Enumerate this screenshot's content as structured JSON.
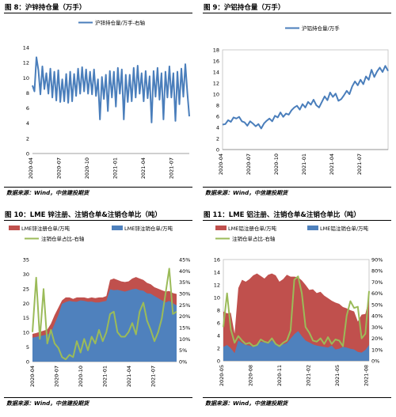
{
  "figures": [
    {
      "title": "图 8：沪锌持仓量（万手）",
      "source": "数据来源：Wind，中信建投期货"
    },
    {
      "title": "图 9：沪铝持仓量（万手）",
      "source": "数据来源：Wind，中信建投期货"
    },
    {
      "title": "图 10：LME 锌注册、注销仓单&注销仓单比（吨）",
      "source": "数据来源：Wind，中信建投期货"
    },
    {
      "title": "图 11：LME 铝注册、注销仓单&注销仓单比（吨）",
      "source": "数据来源：Wind，中信建投期货"
    }
  ],
  "colors": {
    "blue_line": "#4a7ebb",
    "red_area": "#c0504d",
    "blue_area": "#4f81bd",
    "green_line": "#9bbb59"
  },
  "chart_data": [
    {
      "type": "line",
      "series": [
        {
          "name": "沪锌持仓量/万手-右轴",
          "color": "#4a7ebb",
          "values": [
            9,
            8.2,
            12.7,
            11,
            7.8,
            11.5,
            8.5,
            10.6,
            7.9,
            11.2,
            7.4,
            10.8,
            7,
            11,
            6.8,
            9.8,
            6.9,
            10.5,
            6.7,
            10.8,
            6.9,
            10.5,
            7.6,
            11.2,
            7.9,
            11.4,
            8.2,
            11.1,
            7.9,
            10.8,
            7.8,
            11.1,
            7.6,
            9.8,
            4.5,
            10.1,
            7.2,
            10.4,
            5.6,
            10.9,
            7.4,
            10.8,
            6.2,
            11.3,
            7.9,
            11.1,
            4.5,
            10.4,
            6.8,
            10.4,
            6.9,
            11.3,
            7.4,
            11.6,
            7.9,
            10.6,
            6.9,
            10.9,
            7.3,
            10.2,
            4.1,
            10.9,
            7.5,
            11.3,
            7.1,
            10.6,
            4.5,
            10.8,
            7.4,
            11.5,
            7.4,
            10.6,
            4.3,
            10.8,
            6.5,
            11.2,
            7.5,
            11.8,
            8.1,
            4.9
          ]
        }
      ],
      "x_ticks": [
        "2020-04",
        "2020-07",
        "2020-10",
        "2021-01",
        "2021-04",
        "2021-07"
      ],
      "ylim": [
        0,
        14
      ],
      "y_ticks": [
        0,
        2,
        4,
        6,
        8,
        10,
        12,
        14
      ],
      "legend_position": "top-center"
    },
    {
      "type": "line",
      "series": [
        {
          "name": "沪铝持仓量/万手",
          "color": "#4a7ebb",
          "values": [
            4.5,
            4.6,
            5.3,
            5.0,
            5.8,
            5.6,
            5.9,
            5.1,
            4.9,
            4.3,
            5.1,
            4.7,
            4.2,
            4.6,
            3.8,
            4.7,
            5.2,
            5.6,
            5.1,
            6.1,
            5.8,
            6.7,
            5.9,
            6.5,
            6.3,
            7.1,
            7.6,
            7.9,
            7.2,
            8.2,
            7.6,
            8.6,
            8.1,
            9.0,
            8.0,
            7.6,
            8.6,
            9.6,
            8.9,
            10.3,
            9.5,
            10.1,
            8.8,
            9.1,
            9.8,
            10.6,
            10.0,
            11.4,
            12.3,
            11.6,
            12.6,
            11.8,
            13.2,
            12.6,
            14.4,
            13.1,
            14.1,
            14.8,
            14.0,
            15.1,
            14.2
          ]
        }
      ],
      "x_ticks": [
        "2020-04",
        "2020-07",
        "2020-10",
        "2021-01",
        "2021-04",
        "2021-07"
      ],
      "ylim": [
        0,
        18
      ],
      "y_ticks": [
        0,
        2,
        4,
        6,
        8,
        10,
        12,
        14,
        16,
        18
      ],
      "legend_position": "top-center"
    },
    {
      "type": "area",
      "series": [
        {
          "name": "LME锌注册仓单/万吨",
          "color": "#c0504d",
          "values": [
            9.5,
            9.8,
            10.2,
            10.6,
            11,
            13,
            16,
            18.5,
            21,
            22,
            22,
            21.5,
            22,
            22,
            22,
            21.7,
            22,
            21.8,
            22,
            22,
            22.5,
            28,
            28.5,
            28,
            27.5,
            27.3,
            27.5,
            28.5,
            29,
            28.5,
            28,
            27,
            26.5,
            25.5,
            25,
            24.5,
            24,
            24.2,
            23.5,
            23.2
          ]
        },
        {
          "name": "LME锌注销仓单/万吨",
          "color": "#4f81bd",
          "values": [
            8.2,
            8.5,
            8.7,
            9,
            9.3,
            10,
            13,
            16,
            19.8,
            20.4,
            20.8,
            20.6,
            20.5,
            21,
            20.8,
            20.5,
            20.6,
            20.3,
            20.3,
            20.6,
            20.8,
            24.8,
            24.5,
            24.6,
            24.3,
            24,
            24.4,
            24.8,
            25,
            24.5,
            24.3,
            23.4,
            23.3,
            22.5,
            21.8,
            21,
            20.3,
            20.8,
            20,
            19.3
          ]
        },
        {
          "name": "注销仓单占比-右轴",
          "color": "#9bbb59",
          "values": [
            13,
            37,
            10,
            32,
            8,
            14,
            8,
            6,
            2,
            1,
            3,
            2,
            9,
            4,
            10,
            5,
            11,
            8,
            14,
            9,
            13,
            21,
            22,
            13,
            11,
            11,
            13,
            17,
            12,
            22,
            26,
            18,
            14,
            9,
            13,
            19,
            30,
            41,
            21,
            22
          ]
        }
      ],
      "x_ticks": [
        "2020-04",
        "2020-07",
        "2020-10",
        "2021-01",
        "2021-04",
        "2021-07"
      ],
      "ylim": [
        0,
        35
      ],
      "y_ticks": [
        0,
        5,
        10,
        15,
        20,
        25,
        30,
        35
      ],
      "y2lim": [
        0,
        45
      ],
      "y2_ticks": [
        "0%",
        "5%",
        "10%",
        "15%",
        "20%",
        "25%",
        "30%",
        "35%",
        "40%",
        "45%"
      ],
      "legend_position": "top"
    },
    {
      "type": "area",
      "series": [
        {
          "name": "LME铝注册仓单/万吨",
          "color": "#c0504d",
          "values": [
            7.8,
            7.5,
            7.6,
            4.3,
            11.5,
            12.8,
            12.5,
            12.9,
            13.5,
            13.8,
            13.4,
            13,
            13.6,
            13.8,
            13.5,
            12.5,
            12.9,
            13.6,
            13.3,
            13.3,
            13.2,
            12.7,
            12,
            11.2,
            11.3,
            10.7,
            10.9,
            10.3,
            9.9,
            9.5,
            9.2,
            9,
            8.5,
            8.3,
            8,
            7.8,
            6.2,
            7.3,
            7.4,
            9.8
          ]
        },
        {
          "name": "LME铝注销仓单/万吨",
          "color": "#4f81bd",
          "values": [
            2.2,
            2.5,
            2,
            1.2,
            3.2,
            2.8,
            2.5,
            2.4,
            2.2,
            2.6,
            3,
            2.9,
            2.7,
            3.2,
            2.7,
            2.5,
            2.6,
            2.8,
            3.5,
            4.2,
            4.7,
            3.9,
            3.2,
            2.9,
            2.6,
            2.4,
            2.3,
            2.2,
            2.1,
            2.4,
            1.8,
            1.9,
            2.2,
            2.1,
            1.9,
            1.8,
            1.4,
            1.3,
            1.7,
            2.5
          ]
        },
        {
          "name": "注销仓单占比-右轴",
          "color": "#9bbb59",
          "values": [
            30,
            60,
            28,
            16,
            22,
            18,
            15,
            16,
            13,
            14,
            19,
            17,
            16,
            20,
            15,
            13,
            16,
            18,
            27,
            72,
            75,
            60,
            30,
            25,
            18,
            17,
            20,
            15,
            21,
            15,
            19,
            18,
            13,
            40,
            53,
            47,
            48,
            20,
            24,
            62
          ]
        }
      ],
      "x_ticks": [
        "2020-05",
        "2020-08",
        "2020-11",
        "2021-02",
        "2021-05",
        "2021-08"
      ],
      "ylim": [
        0,
        16
      ],
      "y_ticks": [
        0,
        2,
        4,
        6,
        8,
        10,
        12,
        14,
        16
      ],
      "y2lim": [
        0,
        90
      ],
      "y2_ticks": [
        "0%",
        "10%",
        "20%",
        "30%",
        "40%",
        "50%",
        "60%",
        "70%",
        "80%",
        "90%"
      ],
      "legend_position": "top"
    }
  ]
}
